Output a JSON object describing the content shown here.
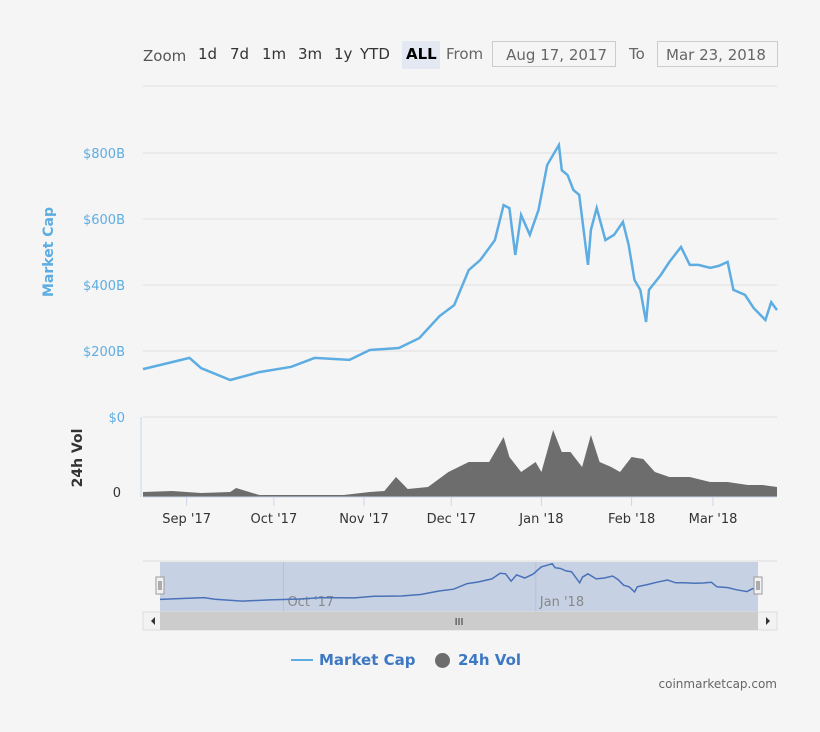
{
  "toolbar": {
    "zoom_label": "Zoom",
    "buttons": [
      "1d",
      "7d",
      "1m",
      "3m",
      "1y",
      "YTD",
      "ALL"
    ],
    "selected": "ALL",
    "from_label": "From",
    "from_value": "Aug 17, 2017",
    "to_label": "To",
    "to_value": "Mar 23, 2018"
  },
  "legend": {
    "market_cap": "Market Cap",
    "volume": "24h Vol"
  },
  "credit": "coinmarketcap.com",
  "colors": {
    "market_cap": "#5dade2",
    "volume": "#6d6d6d",
    "navigator_line": "#4a72b8",
    "navigator_mask": "#c6d1e4"
  },
  "chart_data": {
    "type": "line",
    "x_range": [
      "2017-08-17",
      "2018-03-23"
    ],
    "x_ticks": [
      "Sep '17",
      "Oct '17",
      "Nov '17",
      "Dec '17",
      "Jan '18",
      "Feb '18",
      "Mar '18"
    ],
    "x_tick_dates": [
      "2017-09-01",
      "2017-10-01",
      "2017-11-01",
      "2017-12-01",
      "2018-01-01",
      "2018-02-01",
      "2018-03-01"
    ],
    "navigator_ticks": [
      "Oct '17",
      "Jan '18"
    ],
    "navigator_tick_dates": [
      "2017-10-01",
      "2018-01-01"
    ],
    "grid": true,
    "legend_position": "bottom",
    "series": [
      {
        "name": "Market Cap",
        "ylabel": "Market Cap",
        "ylim": [
          0,
          800
        ],
        "y_ticks": [
          "$0",
          "$200B",
          "$400B",
          "$600B",
          "$800B"
        ],
        "unit": "billion USD",
        "x": [
          "2017-08-17",
          "2017-09-02",
          "2017-09-06",
          "2017-09-16",
          "2017-09-26",
          "2017-10-07",
          "2017-10-15",
          "2017-10-27",
          "2017-11-03",
          "2017-11-13",
          "2017-11-20",
          "2017-11-27",
          "2017-12-02",
          "2017-12-07",
          "2017-12-11",
          "2017-12-16",
          "2017-12-19",
          "2017-12-21",
          "2017-12-23",
          "2017-12-25",
          "2017-12-28",
          "2017-12-31",
          "2018-01-03",
          "2018-01-07",
          "2018-01-08",
          "2018-01-10",
          "2018-01-12",
          "2018-01-14",
          "2018-01-17",
          "2018-01-18",
          "2018-01-20",
          "2018-01-23",
          "2018-01-26",
          "2018-01-29",
          "2018-01-31",
          "2018-02-02",
          "2018-02-04",
          "2018-02-06",
          "2018-02-07",
          "2018-02-11",
          "2018-02-14",
          "2018-02-18",
          "2018-02-21",
          "2018-02-24",
          "2018-02-28",
          "2018-03-03",
          "2018-03-06",
          "2018-03-08",
          "2018-03-12",
          "2018-03-15",
          "2018-03-19",
          "2018-03-21",
          "2018-03-23"
        ],
        "values": [
          145,
          179,
          148,
          112,
          136,
          152,
          179,
          173,
          203,
          209,
          239,
          306,
          339,
          445,
          476,
          536,
          642,
          633,
          491,
          612,
          552,
          627,
          764,
          824,
          748,
          733,
          688,
          673,
          461,
          567,
          633,
          536,
          552,
          591,
          521,
          415,
          385,
          288,
          385,
          430,
          470,
          515,
          461,
          461,
          452,
          458,
          470,
          385,
          370,
          330,
          294,
          348,
          324
        ]
      },
      {
        "name": "24h Vol",
        "ylabel": "24h Vol",
        "y_ticks": [
          "0"
        ],
        "ylim": [
          0,
          80
        ],
        "x": [
          "2017-08-17",
          "2017-08-27",
          "2017-09-06",
          "2017-09-16",
          "2017-09-18",
          "2017-09-26",
          "2017-10-10",
          "2017-10-25",
          "2017-11-03",
          "2017-11-08",
          "2017-11-12",
          "2017-11-16",
          "2017-11-23",
          "2017-11-30",
          "2017-12-07",
          "2017-12-14",
          "2017-12-19",
          "2017-12-21",
          "2017-12-25",
          "2017-12-30",
          "2018-01-01",
          "2018-01-05",
          "2018-01-08",
          "2018-01-11",
          "2018-01-15",
          "2018-01-18",
          "2018-01-21",
          "2018-01-25",
          "2018-01-28",
          "2018-02-01",
          "2018-02-05",
          "2018-02-09",
          "2018-02-14",
          "2018-02-21",
          "2018-02-28",
          "2018-03-06",
          "2018-03-13",
          "2018-03-18",
          "2018-03-23"
        ],
        "values": [
          5,
          6,
          4,
          5,
          9,
          2,
          2,
          2,
          5,
          6,
          20,
          8,
          10,
          25,
          35,
          35,
          60,
          40,
          25,
          35,
          25,
          67,
          45,
          45,
          30,
          62,
          35,
          30,
          25,
          40,
          38,
          25,
          20,
          20,
          15,
          15,
          12,
          12,
          10
        ]
      }
    ]
  }
}
